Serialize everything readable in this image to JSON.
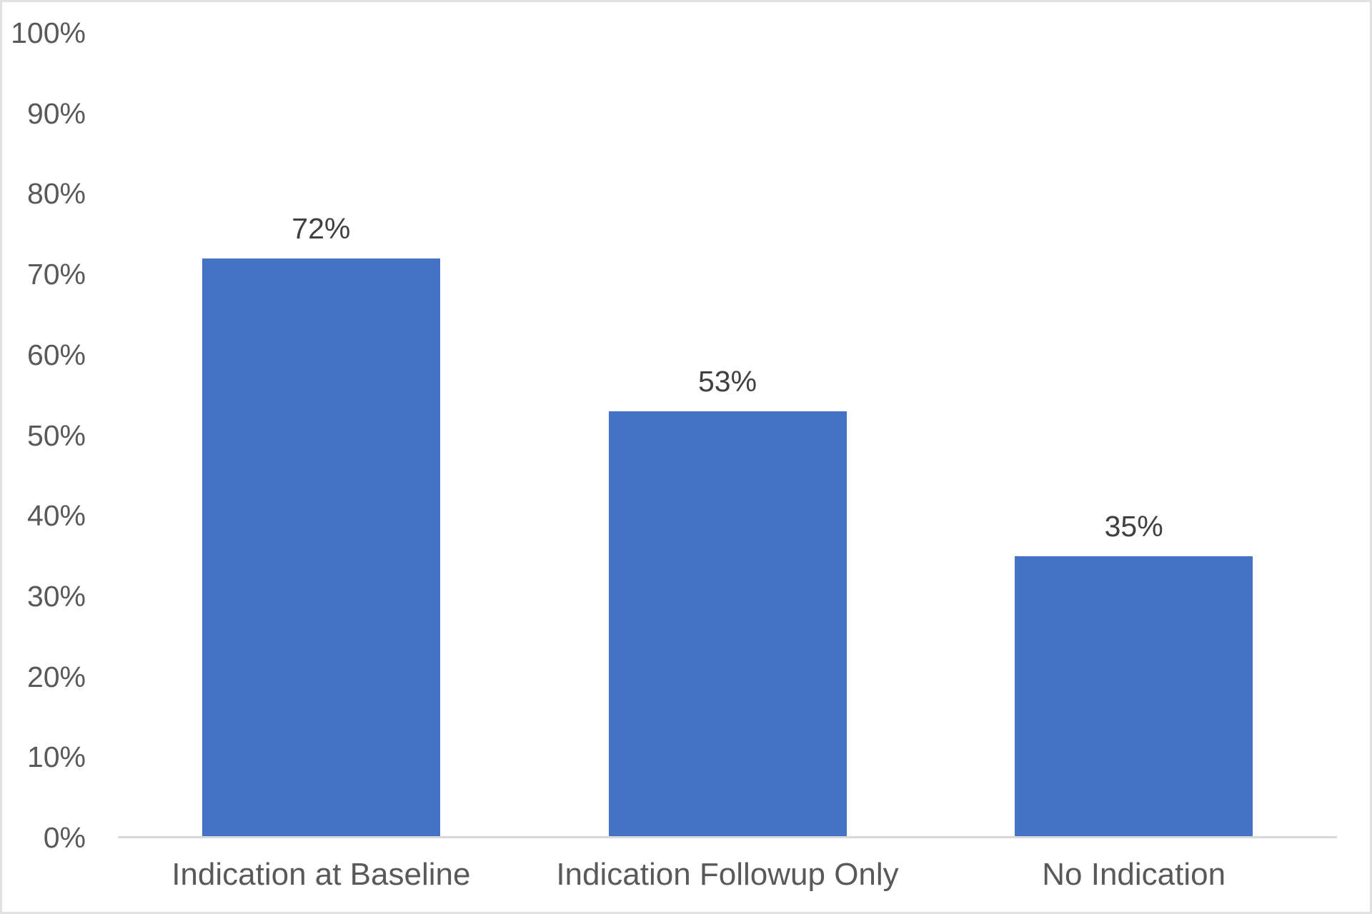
{
  "chart_data": {
    "type": "bar",
    "title": "",
    "xlabel": "",
    "ylabel": "",
    "categories": [
      "Indication at Baseline",
      "Indication Followup Only",
      "No Indication"
    ],
    "values": [
      72,
      53,
      35
    ],
    "data_labels": [
      "72%",
      "53%",
      "35%"
    ],
    "y_tick_labels": [
      "0%",
      "10%",
      "20%",
      "30%",
      "40%",
      "50%",
      "60%",
      "70%",
      "80%",
      "90%",
      "100%"
    ],
    "y_tick_values": [
      0,
      10,
      20,
      30,
      40,
      50,
      60,
      70,
      80,
      90,
      100
    ],
    "ylim": [
      0,
      100
    ],
    "grid": false,
    "legend": "none",
    "colors": {
      "bar_fill": "#4472C4",
      "y_tick_label": "#595959",
      "category_label": "#595959",
      "data_label": "#404040",
      "axis_line": "#D9D9D9",
      "figure_border": "#E2E2E2",
      "background": "#FFFFFF"
    }
  }
}
